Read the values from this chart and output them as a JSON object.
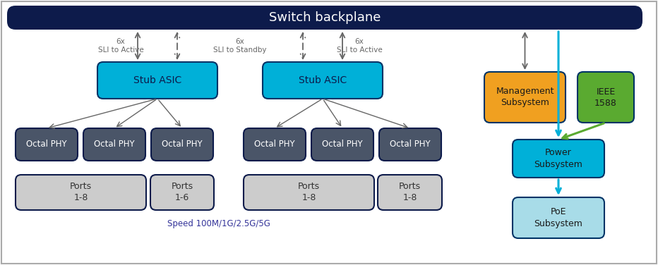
{
  "title": "Switch backplane",
  "title_bg": "#0d1b4b",
  "title_color": "white",
  "bg_color": "white",
  "border_color": "#aaaaaa",
  "stub_asic_color": "#00b0d8",
  "stub_asic_border": "#003366",
  "stub_asic_text": "Stub ASIC",
  "stub_asic_text_color": "#0d1b4b",
  "octal_phy_color": "#4a5568",
  "octal_phy_border": "#0d1b4b",
  "octal_phy_text": "Octal PHY",
  "octal_phy_text_color": "white",
  "ports_color": "#cccccc",
  "ports_border": "#0d1b4b",
  "ports_text_color": "#333333",
  "management_color": "#f0a020",
  "management_border": "#003366",
  "management_text": "Management\nSubsystem",
  "management_text_color": "#1a1a1a",
  "ieee_color": "#5aaa30",
  "ieee_border": "#003366",
  "ieee_text": "IEEE\n1588",
  "ieee_text_color": "#1a1a1a",
  "power_color": "#00b0d8",
  "power_border": "#003366",
  "power_text": "Power\nSubsystem",
  "power_text_color": "#1a1a1a",
  "poe_color": "#a8dce8",
  "poe_border": "#003366",
  "poe_text": "PoE\nSubsystem",
  "poe_text_color": "#1a1a1a",
  "arrow_color": "#666666",
  "cyan_arrow_color": "#00b0d8",
  "green_arrow_color": "#5aaa30",
  "speed_label": "Speed 100M/1G/2.5G/5G",
  "speed_label_color": "#333399"
}
